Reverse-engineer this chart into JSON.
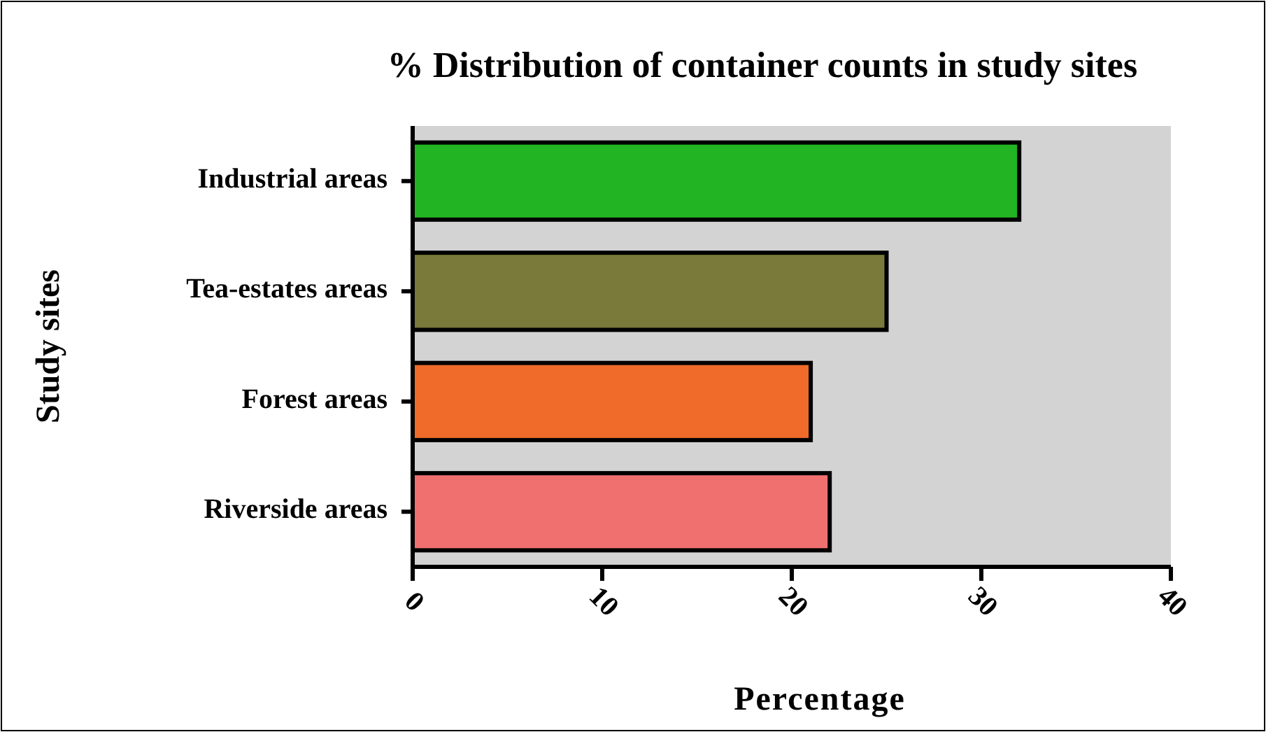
{
  "chart_data": {
    "type": "bar",
    "orientation": "horizontal",
    "title": "% Distribution of container counts in study sites",
    "xlabel": "Percentage",
    "ylabel": "Study sites",
    "categories": [
      "Industrial areas",
      "Tea-estates areas",
      "Forest areas",
      "Riverside areas"
    ],
    "values": [
      32,
      25,
      21,
      22
    ],
    "colors": [
      "#22b422",
      "#7a7a3a",
      "#f06a2a",
      "#f07070"
    ],
    "xlim": [
      0,
      40
    ],
    "xticks": [
      0,
      10,
      20,
      30,
      40
    ],
    "grid": false
  }
}
